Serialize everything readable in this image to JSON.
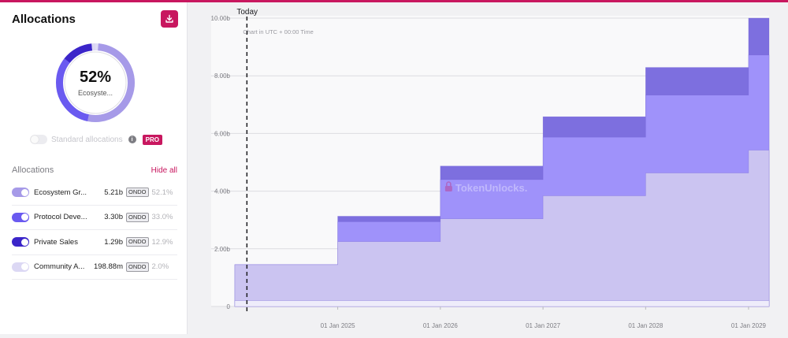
{
  "panel": {
    "title": "Allocations",
    "download_icon": "download-icon",
    "donut": {
      "percent": "52%",
      "label": "Ecosyste..."
    },
    "standard_allocations_label": "Standard allocations",
    "pro_badge": "PRO",
    "allocations_title": "Allocations",
    "hide_all_label": "Hide all",
    "rows": [
      {
        "name": "Ecosystem Gr...",
        "amount": "5.21b",
        "token": "ONDO",
        "pct": "52.1%",
        "color": "#a69ae8"
      },
      {
        "name": "Protocol Deve...",
        "amount": "3.30b",
        "token": "ONDO",
        "pct": "33.0%",
        "color": "#6a5af0"
      },
      {
        "name": "Private Sales",
        "amount": "1.29b",
        "token": "ONDO",
        "pct": "12.9%",
        "color": "#3b25c9"
      },
      {
        "name": "Community A...",
        "amount": "198.88m",
        "token": "ONDO",
        "pct": "2.0%",
        "color": "#dcd8f4"
      }
    ]
  },
  "chart_data": {
    "type": "area",
    "step": true,
    "today_label": "Today",
    "note": "Chart in UTC + 00:00 Time",
    "watermark": "TokenUnlocks.",
    "x_ticks": [
      "01 Jan 2025",
      "01 Jan 2026",
      "01 Jan 2027",
      "01 Jan 2028",
      "01 Jan 2029"
    ],
    "y_ticks": [
      "0",
      "2.00b",
      "4.00b",
      "6.00b",
      "8.00b",
      "10.00b"
    ],
    "ylim": [
      0,
      10
    ],
    "x_range": [
      "2024-01-18",
      "2029-04-01"
    ],
    "today": "2024-03-01",
    "step_dates": [
      "2024-01-18",
      "2025-01-18",
      "2026-01-18",
      "2027-01-18",
      "2028-01-18",
      "2029-01-18",
      "2029-04-01"
    ],
    "series": [
      {
        "values": [
          0.2,
          0.2,
          0.2,
          0.2,
          0.2,
          0.2,
          0.2
        ],
        "color": "#eeecfa"
      },
      {
        "values": [
          1.45,
          2.25,
          3.04,
          3.84,
          4.63,
          5.42,
          5.42
        ],
        "color": "#cbc4f1"
      },
      {
        "values": [
          1.45,
          2.94,
          4.4,
          5.87,
          7.33,
          8.72,
          8.72
        ],
        "color": "#9f92fa"
      },
      {
        "values": [
          1.45,
          3.13,
          4.87,
          6.58,
          8.29,
          10.0,
          10.0
        ],
        "color": "#7d6fdf"
      }
    ]
  }
}
